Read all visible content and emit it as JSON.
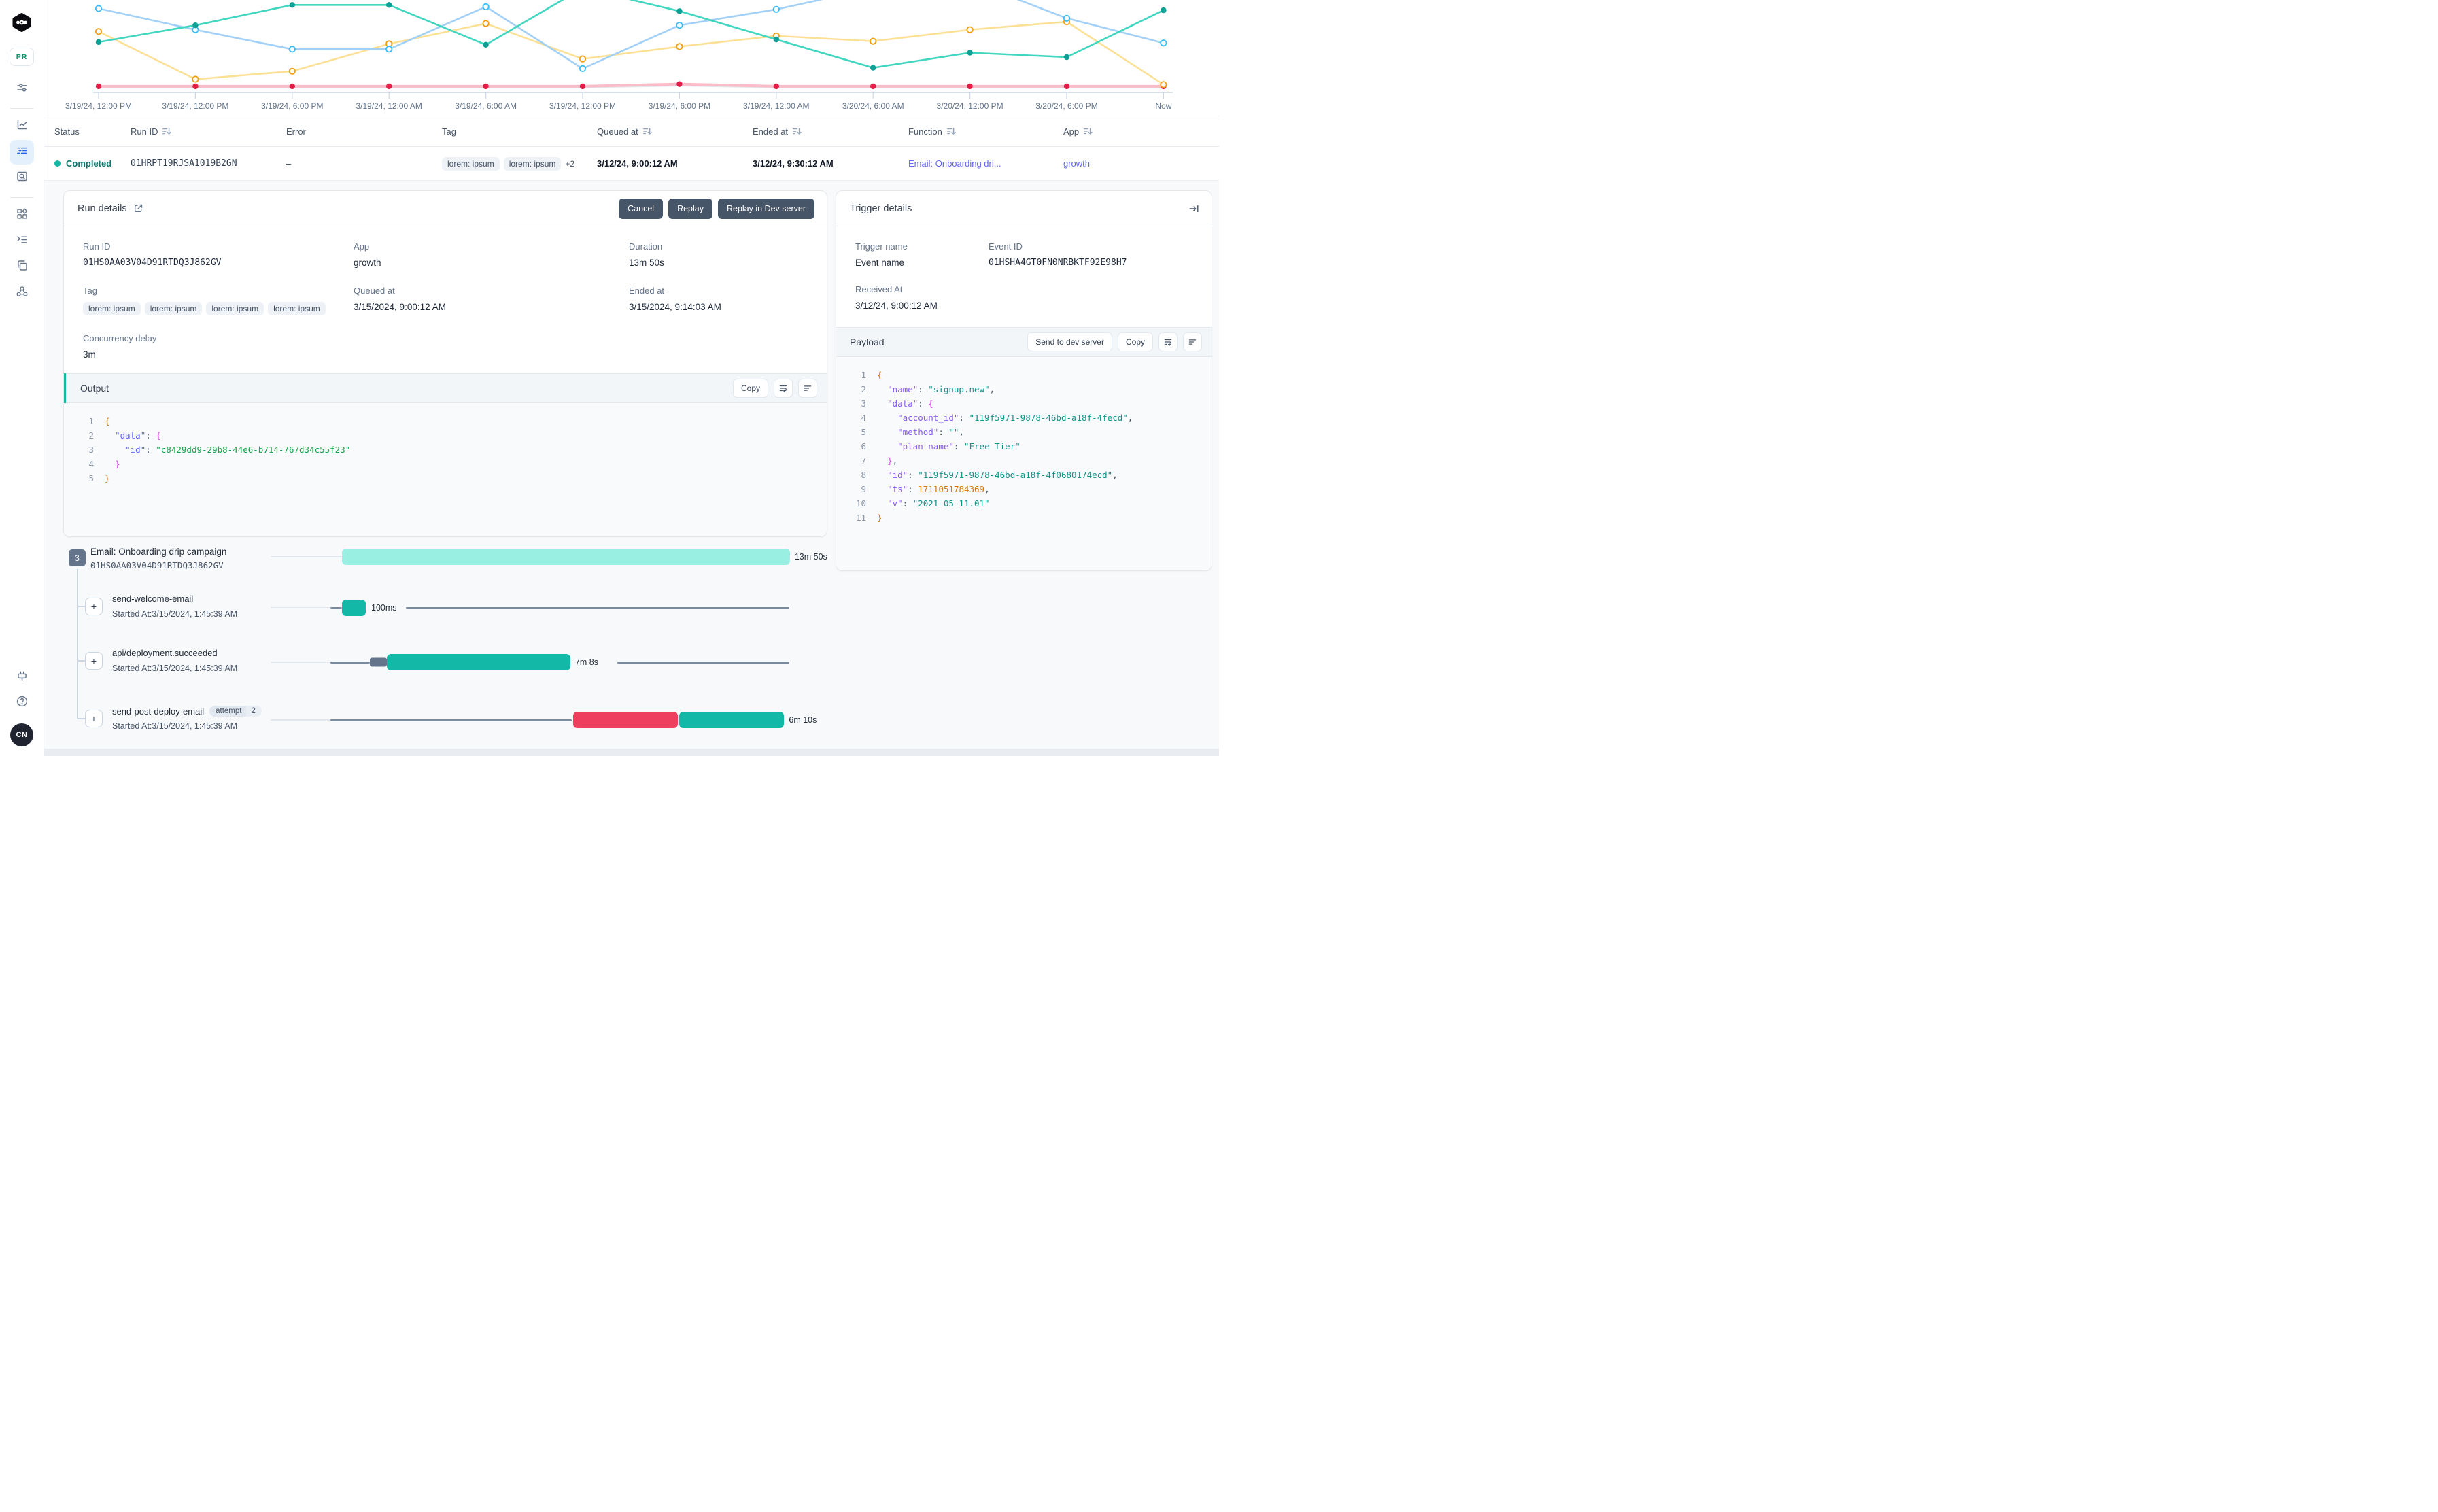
{
  "colors": {
    "accent_teal": "#14b8a6",
    "link_indigo": "#6366f1",
    "status_completed": "#0f766e",
    "bar_mint": "#99f0e2",
    "bar_teal": "#14b8a6",
    "bar_red": "#ef3f5e",
    "bar_slate": "#64748b"
  },
  "sidebar": {
    "logo": "inngest-logo",
    "env_badge": "PR",
    "items": [
      "filters-icon",
      "metrics-icon",
      "runs-icon",
      "log-search-icon",
      "apps-icon",
      "events-icon",
      "copy-pages-icon",
      "webhook-icon"
    ],
    "bottom_items": [
      "dev-server-icon",
      "help-icon"
    ],
    "avatar_initials": "CN"
  },
  "chart": {
    "type": "line",
    "x_labels": [
      "3/19/24, 12:00 PM",
      "3/19/24, 12:00 PM",
      "3/19/24, 6:00 PM",
      "3/19/24, 12:00 AM",
      "3/19/24, 6:00 AM",
      "3/19/24, 12:00 PM",
      "3/19/24, 6:00 PM",
      "3/19/24, 12:00 AM",
      "3/20/24, 6:00 AM",
      "3/20/24, 12:00 PM",
      "3/20/24, 6:00 PM",
      "Now"
    ],
    "ylim": [
      0,
      100
    ],
    "series": [
      {
        "name": "gray",
        "line": "#e4e7eb",
        "width": 3,
        "dots": "none",
        "dot": "#d1d5db",
        "values": [
          6,
          6,
          6,
          6,
          6,
          6,
          8,
          6,
          6,
          6,
          6,
          6
        ]
      },
      {
        "name": "red",
        "line": "#f9bcc8",
        "width": 4,
        "dots": "filled",
        "dot": "#e11d48",
        "values": [
          7,
          7,
          7,
          7,
          7,
          7,
          9.5,
          7,
          7,
          7,
          7,
          7
        ]
      },
      {
        "name": "yellow",
        "line": "#fbe096",
        "width": 2.6,
        "dots": "hollow",
        "dot": "#f59e0b",
        "values": [
          69,
          15,
          24,
          55,
          78,
          38,
          52,
          64,
          58,
          71,
          80,
          9
        ]
      },
      {
        "name": "blue",
        "line": "#a3d0f7",
        "width": 2.6,
        "dots": "hollow",
        "dot": "#38bdf8",
        "values": [
          95,
          71,
          49,
          49,
          97,
          27,
          76,
          94,
          118,
          126,
          84,
          56
        ]
      },
      {
        "name": "teal",
        "line": "#40d6c0",
        "width": 2.6,
        "dots": "filled",
        "dot": "#0d9f93",
        "values": [
          57,
          76,
          99,
          99,
          54,
          118,
          92,
          60,
          28,
          45,
          40,
          93
        ]
      }
    ]
  },
  "table": {
    "columns": [
      {
        "label": "Status",
        "sortable": false
      },
      {
        "label": "Run ID",
        "sortable": true
      },
      {
        "label": "Error",
        "sortable": false
      },
      {
        "label": "Tag",
        "sortable": false
      },
      {
        "label": "Queued at",
        "sortable": true
      },
      {
        "label": "Ended at",
        "sortable": true
      },
      {
        "label": "Function",
        "sortable": true
      },
      {
        "label": "App",
        "sortable": true
      }
    ],
    "row": {
      "status": "Completed",
      "run_id": "01HRPT19RJSA1019B2GN",
      "error": "–",
      "tags": [
        "lorem: ipsum",
        "lorem: ipsum"
      ],
      "tags_more": "+2",
      "queued_at": "3/12/24, 9:00:12 AM",
      "ended_at": "3/12/24, 9:30:12 AM",
      "function": "Email: Onboarding dri...",
      "app": "growth"
    }
  },
  "run_details": {
    "title": "Run details",
    "buttons": {
      "cancel": "Cancel",
      "replay": "Replay",
      "replay_dev": "Replay in Dev server"
    },
    "labels": {
      "run_id": "Run ID",
      "app": "App",
      "duration": "Duration",
      "tag": "Tag",
      "queued_at": "Queued at",
      "ended_at": "Ended at",
      "concurrency": "Concurrency delay"
    },
    "run_id": "01HS0AA03V04D91RTDQ3J862GV",
    "app": "growth",
    "duration": "13m 50s",
    "tags": [
      "lorem: ipsum",
      "lorem: ipsum",
      "lorem: ipsum",
      "lorem: ipsum"
    ],
    "queued_at": "3/15/2024, 9:00:12 AM",
    "ended_at": "3/15/2024, 9:14:03 AM",
    "concurrency_delay": "3m",
    "output": {
      "title": "Output",
      "copy_label": "Copy",
      "lines": [
        [
          [
            "b1",
            "{"
          ]
        ],
        [
          [
            "pu",
            "  "
          ],
          [
            "k1",
            "\"data\""
          ],
          [
            "pu",
            ": "
          ],
          [
            "b2",
            "{"
          ]
        ],
        [
          [
            "pu",
            "    "
          ],
          [
            "k1",
            "\"id\""
          ],
          [
            "pu",
            ": "
          ],
          [
            "s1",
            "\"c8429dd9-29b8-44e6-b714-767d34c55f23\""
          ]
        ],
        [
          [
            "pu",
            "  "
          ],
          [
            "b2",
            "}"
          ]
        ],
        [
          [
            "b1",
            "}"
          ]
        ]
      ]
    }
  },
  "trigger_details": {
    "title": "Trigger details",
    "labels": {
      "trigger_name": "Trigger name",
      "event_id": "Event ID",
      "received_at": "Received At"
    },
    "trigger_name": "Event name",
    "event_id": "01HSHA4GT0FN0NRBKTF92E98H7",
    "received_at": "3/12/24, 9:00:12 AM",
    "payload": {
      "title": "Payload",
      "send_label": "Send to dev server",
      "copy_label": "Copy",
      "lines": [
        [
          [
            "b1",
            "{"
          ]
        ],
        [
          [
            "pu",
            "  "
          ],
          [
            "k2",
            "\"name\""
          ],
          [
            "pu",
            ": "
          ],
          [
            "s2",
            "\"signup.new\""
          ],
          [
            "pu",
            ","
          ]
        ],
        [
          [
            "pu",
            "  "
          ],
          [
            "k2",
            "\"data\""
          ],
          [
            "pu",
            ": "
          ],
          [
            "b2",
            "{"
          ]
        ],
        [
          [
            "pu",
            "    "
          ],
          [
            "k2",
            "\"account_id\""
          ],
          [
            "pu",
            ": "
          ],
          [
            "s2",
            "\"119f5971-9878-46bd-a18f-4fecd\""
          ],
          [
            "pu",
            ","
          ]
        ],
        [
          [
            "pu",
            "    "
          ],
          [
            "k2",
            "\"method\""
          ],
          [
            "pu",
            ": "
          ],
          [
            "s2",
            "\"\""
          ],
          [
            "pu",
            ","
          ]
        ],
        [
          [
            "pu",
            "    "
          ],
          [
            "k2",
            "\"plan_name\""
          ],
          [
            "pu",
            ": "
          ],
          [
            "s2",
            "\"Free Tier\""
          ]
        ],
        [
          [
            "pu",
            "  "
          ],
          [
            "b2",
            "}"
          ],
          [
            "pu",
            ","
          ]
        ],
        [
          [
            "pu",
            "  "
          ],
          [
            "k2",
            "\"id\""
          ],
          [
            "pu",
            ": "
          ],
          [
            "s2",
            "\"119f5971-9878-46bd-a18f-4f0680174ecd\""
          ],
          [
            "pu",
            ","
          ]
        ],
        [
          [
            "pu",
            "  "
          ],
          [
            "k2",
            "\"ts\""
          ],
          [
            "pu",
            ": "
          ],
          [
            "num",
            "1711051784369"
          ],
          [
            "pu",
            ","
          ]
        ],
        [
          [
            "pu",
            "  "
          ],
          [
            "k2",
            "\"v\""
          ],
          [
            "pu",
            ": "
          ],
          [
            "s2",
            "\"2021-05-11.01\""
          ]
        ],
        [
          [
            "b1",
            "}"
          ]
        ]
      ]
    }
  },
  "timeline": {
    "root": {
      "badge": "3",
      "name": "Email: Onboarding drip campaign",
      "run_id": "01HS0AA03V04D91RTDQ3J862GV",
      "duration": "13m 50s",
      "segments": [
        {
          "k": "line",
          "shade": "light",
          "from": 0,
          "to": 13.7
        },
        {
          "k": "bar",
          "color": "mint",
          "from": 13.7,
          "to": 99.6
        },
        {
          "k": "label",
          "text": "13m 50s",
          "from": 100.5
        }
      ]
    },
    "steps": [
      {
        "name": "send-welcome-email",
        "started_at": "Started At:3/15/2024, 1:45:39 AM",
        "duration": "100ms",
        "segments": [
          {
            "k": "line",
            "shade": "light",
            "from": 0,
            "to": 11.5
          },
          {
            "k": "line",
            "shade": "dark",
            "from": 11.5,
            "to": 13.7
          },
          {
            "k": "bar",
            "color": "teal",
            "from": 13.7,
            "to": 18.3
          },
          {
            "k": "label",
            "text": "100ms",
            "from": 19.3
          },
          {
            "k": "line",
            "shade": "dark",
            "from": 26,
            "to": 99.5
          }
        ]
      },
      {
        "name": "api/deployment.succeeded",
        "started_at": "Started At:3/15/2024, 1:45:39 AM",
        "duration": "7m 8s",
        "segments": [
          {
            "k": "line",
            "shade": "light",
            "from": 0,
            "to": 11.5
          },
          {
            "k": "line",
            "shade": "dark",
            "from": 11.5,
            "to": 19
          },
          {
            "k": "bar",
            "color": "slate",
            "from": 19,
            "to": 22.3
          },
          {
            "k": "bar",
            "color": "teal",
            "from": 22.3,
            "to": 57.5
          },
          {
            "k": "label",
            "text": "7m 8s",
            "from": 58.4
          },
          {
            "k": "line",
            "shade": "dark",
            "from": 66.5,
            "to": 99.5
          }
        ]
      },
      {
        "name": "send-post-deploy-email",
        "attempt_label": "attempt",
        "attempt_count": "2",
        "started_at": "Started At:3/15/2024, 1:45:39 AM",
        "duration": "6m 10s",
        "segments": [
          {
            "k": "line",
            "shade": "light",
            "from": 0,
            "to": 11.5
          },
          {
            "k": "line",
            "shade": "dark",
            "from": 11.5,
            "to": 57.8
          },
          {
            "k": "bar",
            "color": "red",
            "from": 58,
            "to": 78.1
          },
          {
            "k": "bar",
            "color": "teal",
            "from": 78.4,
            "to": 98.5
          },
          {
            "k": "label",
            "text": "6m 10s",
            "from": 99.4
          }
        ]
      }
    ]
  }
}
